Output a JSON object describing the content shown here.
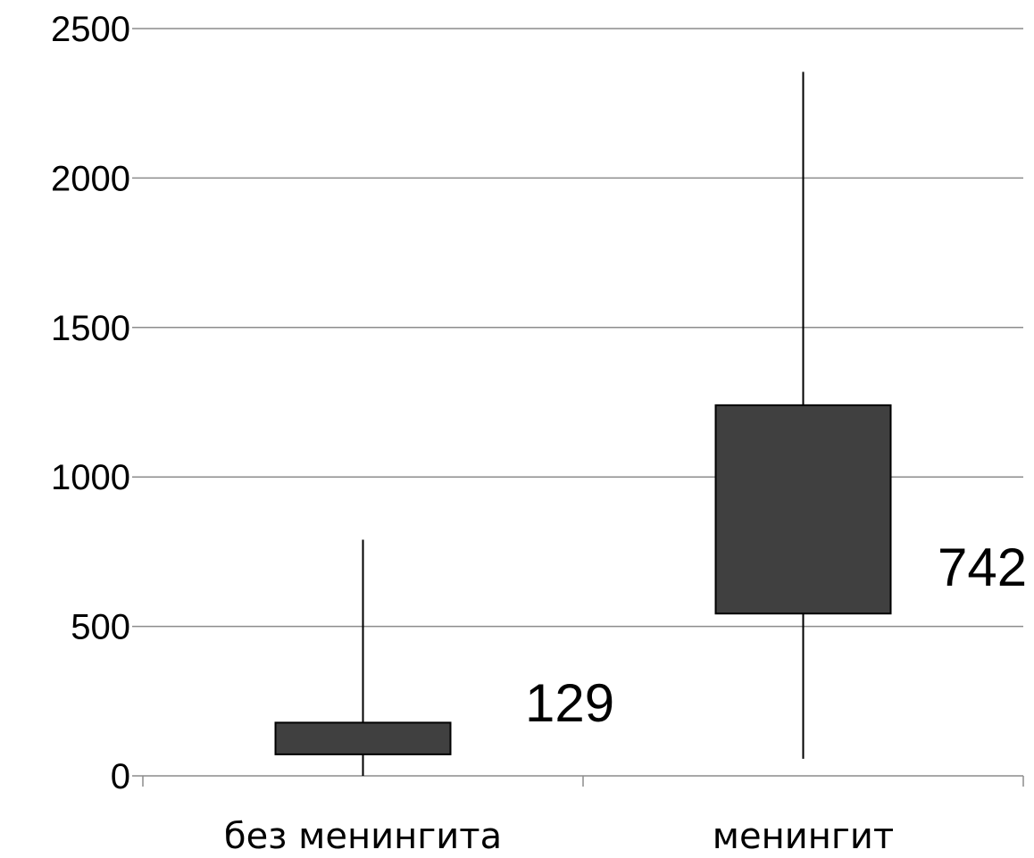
{
  "chart_data": {
    "type": "boxplot",
    "title": "",
    "xlabel": "",
    "ylabel": "",
    "ylim": [
      0,
      2500
    ],
    "yticks": [
      0,
      500,
      1000,
      1500,
      2000,
      2500
    ],
    "grid": true,
    "categories": [
      "без менингита",
      "менингит"
    ],
    "boxes": [
      {
        "category": "без менингита",
        "whisker_low": 0,
        "q1": 72,
        "q3": 178,
        "whisker_high": 790,
        "label": "129"
      },
      {
        "category": "менингит",
        "whisker_low": 57,
        "q1": 543,
        "q3": 1240,
        "whisker_high": 2355,
        "label": "742"
      }
    ],
    "colors": {
      "box_fill": "#404040",
      "grid": "#8c8c8c"
    }
  }
}
